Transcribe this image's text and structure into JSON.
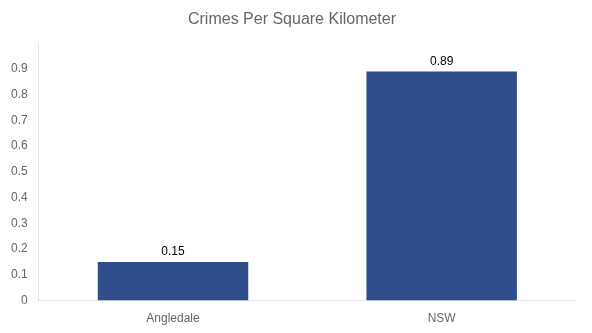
{
  "chart_data": {
    "type": "bar",
    "title": "Crimes Per Square Kilometer",
    "categories": [
      "Angledale",
      "NSW"
    ],
    "values": [
      0.15,
      0.89
    ],
    "color": "#2e4d8a",
    "ylim": [
      0,
      1.0
    ],
    "yticks": [
      0,
      0.1,
      0.2,
      0.3,
      0.4,
      0.5,
      0.6,
      0.7,
      0.8,
      0.9
    ],
    "grid": false,
    "data_labels": true
  }
}
